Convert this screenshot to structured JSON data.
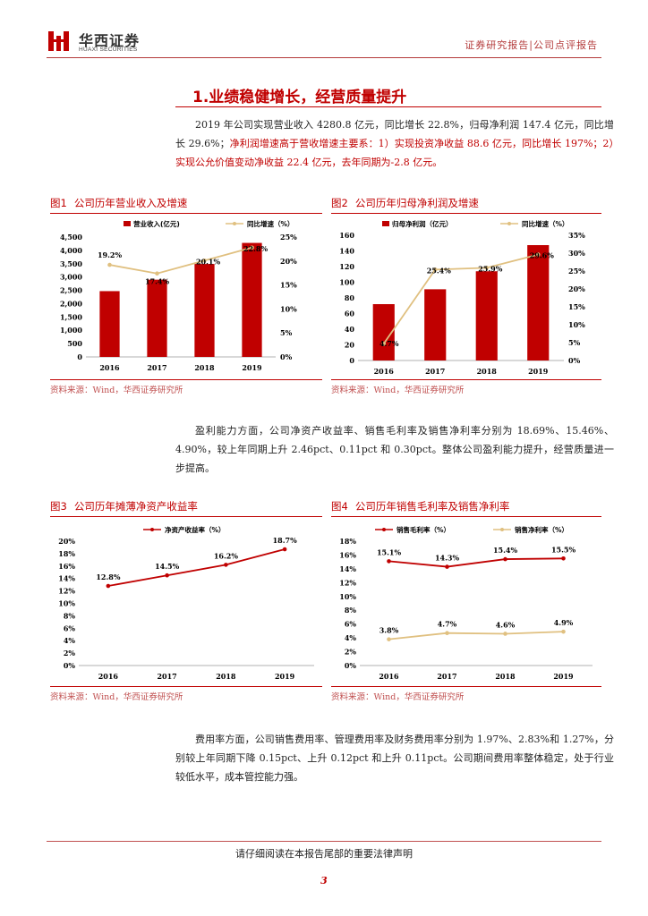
{
  "header": {
    "logo_cn": "华西证券",
    "logo_en": "HUAXI SECURITIES",
    "doc_type": "证券研究报告|公司点评报告"
  },
  "section": {
    "title": "1.业绩稳健增长，经营质量提升"
  },
  "paragraphs": {
    "p1_a": "2019 年公司实现营业收入 4280.8 亿元，同比增长 22.8%，归母净利润 147.4 亿元，同比增长 29.6%；",
    "p1_b": "净利润增速高于营收增速主要系：1）实现投资净收益 88.6 亿元，同比增长 197%；2）实现公允价值变动净收益 22.4 亿元，去年同期为-2.8 亿元。",
    "p2": "盈利能力方面，公司净资产收益率、销售毛利率及销售净利率分别为 18.69%、15.46%、4.90%，较上年同期上升 2.46pct、0.11pct 和 0.30pct。整体公司盈利能力提升，经营质量进一步提高。",
    "p3": "费用率方面，公司销售费用率、管理费用率及财务费用率分别为 1.97%、2.83%和 1.27%，分别较上年同期下降 0.15pct、上升 0.12pct 和上升 0.11pct。公司期间费用率整体稳定，处于行业较低水平，成本管控能力强。"
  },
  "figures": [
    {
      "num": "图1",
      "title": "公司历年营业收入及增速",
      "source": "资料来源：Wind，华西证券研究所"
    },
    {
      "num": "图2",
      "title": "公司历年归母净利润及增速",
      "source": "资料来源：Wind，华西证券研究所"
    },
    {
      "num": "图3",
      "title": "公司历年摊薄净资产收益率",
      "source": "资料来源：Wind，华西证券研究所"
    },
    {
      "num": "图4",
      "title": "公司历年销售毛利率及销售净利率",
      "source": "资料来源：Wind，华西证券研究所"
    }
  ],
  "chart_data": [
    {
      "type": "bar+line",
      "categories": [
        "2016",
        "2017",
        "2018",
        "2019"
      ],
      "series": [
        {
          "name": "营业收入(亿元)",
          "kind": "bar",
          "axis": "left",
          "values": [
            2470,
            2900,
            3490,
            4280
          ]
        },
        {
          "name": "同比增速（%）",
          "kind": "line",
          "axis": "right",
          "values": [
            19.2,
            17.4,
            20.1,
            22.8
          ],
          "labels": [
            "19.2%",
            "17.4%",
            "20.1%",
            "22.8%"
          ]
        }
      ],
      "left_ticks": [
        "0",
        "500",
        "1,000",
        "1,500",
        "2,000",
        "2,500",
        "3,000",
        "3,500",
        "4,000",
        "4,500"
      ],
      "left_ylim": [
        0,
        4500
      ],
      "right_ticks": [
        "0%",
        "5%",
        "10%",
        "15%",
        "20%",
        "25%"
      ],
      "right_ylim": [
        0,
        25
      ]
    },
    {
      "type": "bar+line",
      "categories": [
        "2016",
        "2017",
        "2018",
        "2019"
      ],
      "series": [
        {
          "name": "归母净利润（亿元）",
          "kind": "bar",
          "axis": "left",
          "values": [
            72,
            91,
            114,
            147.4
          ]
        },
        {
          "name": "同比增速（%）",
          "kind": "line",
          "axis": "right",
          "values": [
            4.7,
            25.4,
            25.9,
            29.6
          ],
          "labels": [
            "4.7%",
            "25.4%",
            "25.9%",
            "29.6%"
          ]
        }
      ],
      "left_ticks": [
        "0",
        "20",
        "40",
        "60",
        "80",
        "100",
        "120",
        "140",
        "160"
      ],
      "left_ylim": [
        0,
        160
      ],
      "right_ticks": [
        "0%",
        "5%",
        "10%",
        "15%",
        "20%",
        "25%",
        "30%",
        "35%"
      ],
      "right_ylim": [
        0,
        35
      ]
    },
    {
      "type": "line",
      "categories": [
        "2016",
        "2017",
        "2018",
        "2019"
      ],
      "series": [
        {
          "name": "净资产收益率（%）",
          "values": [
            12.8,
            14.5,
            16.2,
            18.7
          ],
          "labels": [
            "12.8%",
            "14.5%",
            "16.2%",
            "18.7%"
          ]
        }
      ],
      "left_ticks": [
        "0%",
        "2%",
        "4%",
        "6%",
        "8%",
        "10%",
        "12%",
        "14%",
        "16%",
        "18%",
        "20%"
      ],
      "left_ylim": [
        0,
        20
      ]
    },
    {
      "type": "line",
      "categories": [
        "2016",
        "2017",
        "2018",
        "2019"
      ],
      "series": [
        {
          "name": "销售毛利率（%）",
          "values": [
            15.1,
            14.3,
            15.4,
            15.5
          ],
          "labels": [
            "15.1%",
            "14.3%",
            "15.4%",
            "15.5%"
          ]
        },
        {
          "name": "销售净利率（%）",
          "values": [
            3.8,
            4.7,
            4.6,
            4.9
          ],
          "labels": [
            "3.8%",
            "4.7%",
            "4.6%",
            "4.9%"
          ]
        }
      ],
      "left_ticks": [
        "0%",
        "2%",
        "4%",
        "6%",
        "8%",
        "10%",
        "12%",
        "14%",
        "16%",
        "18%"
      ],
      "left_ylim": [
        0,
        18
      ]
    }
  ],
  "colors": {
    "brand_red": "#c00000",
    "bar_red": "#c00000",
    "line_gold": "#e0c080",
    "ink": "#222222"
  },
  "footer": {
    "disclaimer": "请仔细阅读在本报告尾部的重要法律声明",
    "page": "3"
  }
}
